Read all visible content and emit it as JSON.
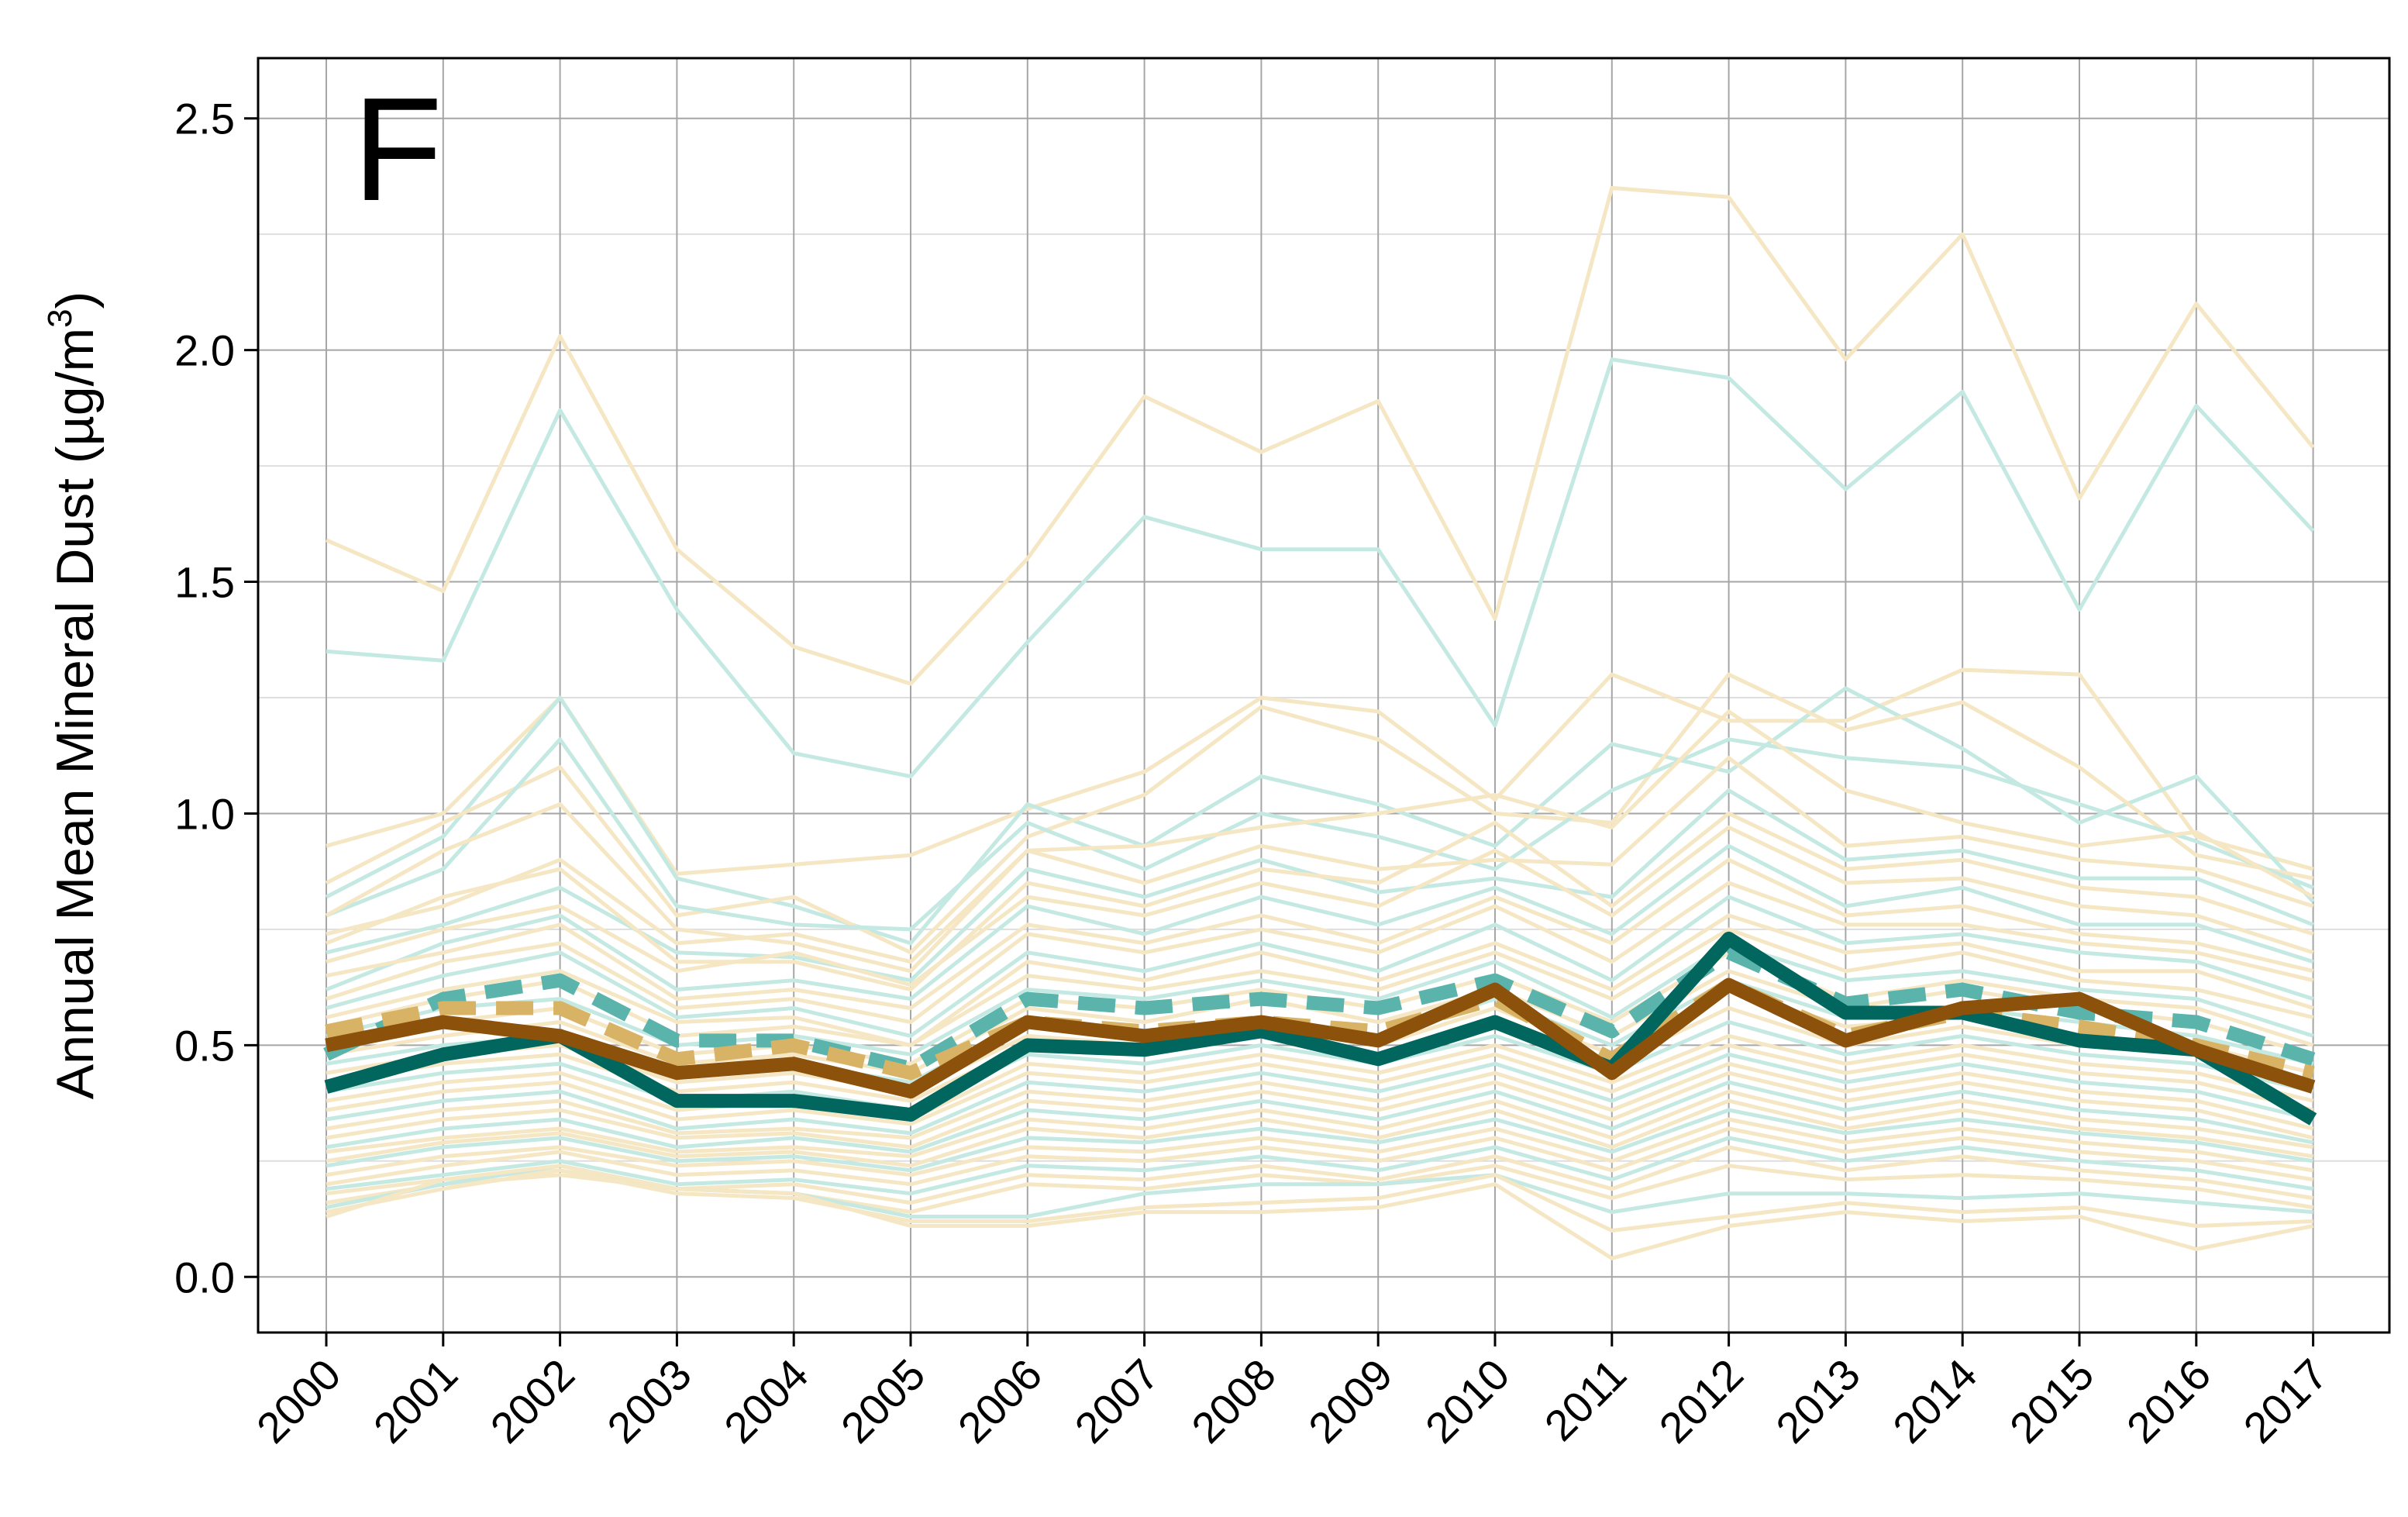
{
  "chart_data": {
    "type": "line",
    "panel_label": "F",
    "ylabel": "Annual Mean Mineral Dust (µg/m³)",
    "ylabel_main": "Annual Mean Mineral Dust (µg/m",
    "ylabel_sup": "3",
    "ylabel_close": ")",
    "xlabel": "",
    "x": [
      "2000",
      "2001",
      "2002",
      "2003",
      "2004",
      "2005",
      "2006",
      "2007",
      "2008",
      "2009",
      "2010",
      "2011",
      "2012",
      "2013",
      "2014",
      "2015",
      "2016",
      "2017"
    ],
    "ylim": [
      -0.12,
      2.63
    ],
    "yticks": [
      0.0,
      0.5,
      1.0,
      1.5,
      2.0,
      2.5
    ],
    "ytick_labels": [
      "0.0",
      "0.5",
      "1.0",
      "1.5",
      "2.0",
      "2.5"
    ],
    "grid": true,
    "colors": {
      "light_tan": "#f5e6c4",
      "light_teal": "#c4e9e2",
      "dark_teal": "#01665e",
      "mid_teal_dashed": "#5ab4ac",
      "brown": "#8c510a",
      "tan_dashed": "#d8b365"
    },
    "background_series": [
      {
        "style": "light_tan",
        "values": [
          1.59,
          1.48,
          2.03,
          1.57,
          1.36,
          1.28,
          1.55,
          1.9,
          1.78,
          1.89,
          1.42,
          2.35,
          2.33,
          1.98,
          2.25,
          1.68,
          2.1,
          1.79
        ]
      },
      {
        "style": "light_teal",
        "values": [
          1.35,
          1.33,
          1.87,
          1.44,
          1.13,
          1.08,
          1.37,
          1.64,
          1.57,
          1.57,
          1.19,
          1.98,
          1.94,
          1.7,
          1.91,
          1.44,
          1.88,
          1.61
        ]
      },
      {
        "style": "light_tan",
        "values": [
          0.93,
          1.0,
          1.25,
          0.87,
          0.89,
          0.91,
          1.01,
          1.09,
          1.25,
          1.22,
          1.03,
          1.3,
          1.2,
          1.2,
          1.31,
          1.3,
          0.95,
          0.88
        ]
      },
      {
        "style": "light_teal",
        "values": [
          0.82,
          0.95,
          1.25,
          0.86,
          0.8,
          0.72,
          1.02,
          0.93,
          1.08,
          1.02,
          0.93,
          1.15,
          1.09,
          1.27,
          1.14,
          0.98,
          1.08,
          0.81
        ]
      },
      {
        "style": "light_tan",
        "values": [
          0.85,
          0.98,
          1.1,
          0.78,
          0.82,
          0.7,
          0.95,
          1.04,
          1.23,
          1.16,
          1.0,
          0.98,
          1.3,
          1.18,
          1.24,
          1.1,
          0.91,
          0.86
        ]
      },
      {
        "style": "light_teal",
        "values": [
          0.78,
          0.88,
          1.16,
          0.8,
          0.76,
          0.75,
          0.98,
          0.88,
          1.0,
          0.95,
          0.88,
          1.05,
          1.16,
          1.12,
          1.1,
          1.02,
          0.94,
          0.84
        ]
      },
      {
        "style": "light_tan",
        "values": [
          0.78,
          0.92,
          1.02,
          0.75,
          0.72,
          0.66,
          0.92,
          0.93,
          0.97,
          1.0,
          1.04,
          0.97,
          1.22,
          1.05,
          0.98,
          0.93,
          0.96,
          0.82
        ]
      },
      {
        "style": "light_tan",
        "values": [
          0.74,
          0.8,
          0.9,
          0.72,
          0.74,
          0.68,
          0.92,
          0.85,
          0.93,
          0.88,
          0.9,
          0.89,
          1.12,
          0.93,
          0.95,
          0.9,
          0.88,
          0.8
        ]
      },
      {
        "style": "light_teal",
        "values": [
          0.7,
          0.76,
          0.84,
          0.7,
          0.69,
          0.64,
          0.88,
          0.82,
          0.9,
          0.83,
          0.86,
          0.82,
          1.05,
          0.9,
          0.92,
          0.86,
          0.86,
          0.76
        ]
      },
      {
        "style": "light_tan",
        "values": [
          0.72,
          0.82,
          0.88,
          0.68,
          0.68,
          0.62,
          0.85,
          0.8,
          0.88,
          0.85,
          0.98,
          0.8,
          1.0,
          0.88,
          0.9,
          0.84,
          0.82,
          0.74
        ]
      },
      {
        "style": "light_tan",
        "values": [
          0.68,
          0.75,
          0.8,
          0.66,
          0.7,
          0.63,
          0.82,
          0.78,
          0.85,
          0.8,
          0.92,
          0.78,
          0.97,
          0.85,
          0.86,
          0.8,
          0.78,
          0.7
        ]
      },
      {
        "style": "light_teal",
        "values": [
          0.62,
          0.72,
          0.78,
          0.62,
          0.64,
          0.6,
          0.8,
          0.74,
          0.82,
          0.76,
          0.84,
          0.74,
          0.93,
          0.8,
          0.84,
          0.76,
          0.76,
          0.68
        ]
      },
      {
        "style": "light_tan",
        "values": [
          0.65,
          0.7,
          0.76,
          0.6,
          0.62,
          0.58,
          0.76,
          0.72,
          0.78,
          0.72,
          0.82,
          0.72,
          0.9,
          0.78,
          0.8,
          0.74,
          0.72,
          0.66
        ]
      },
      {
        "style": "light_tan",
        "values": [
          0.6,
          0.68,
          0.72,
          0.58,
          0.6,
          0.55,
          0.74,
          0.7,
          0.75,
          0.7,
          0.8,
          0.68,
          0.85,
          0.76,
          0.76,
          0.72,
          0.7,
          0.64
        ]
      },
      {
        "style": "light_teal",
        "values": [
          0.58,
          0.65,
          0.7,
          0.56,
          0.58,
          0.52,
          0.7,
          0.66,
          0.72,
          0.66,
          0.76,
          0.64,
          0.82,
          0.72,
          0.74,
          0.7,
          0.68,
          0.6
        ]
      },
      {
        "style": "light_tan",
        "values": [
          0.56,
          0.62,
          0.66,
          0.55,
          0.56,
          0.5,
          0.68,
          0.64,
          0.7,
          0.64,
          0.72,
          0.62,
          0.78,
          0.7,
          0.72,
          0.66,
          0.66,
          0.58
        ]
      },
      {
        "style": "light_tan",
        "values": [
          0.54,
          0.6,
          0.64,
          0.52,
          0.54,
          0.5,
          0.65,
          0.62,
          0.66,
          0.62,
          0.7,
          0.6,
          0.75,
          0.66,
          0.7,
          0.64,
          0.62,
          0.56
        ]
      },
      {
        "style": "light_teal",
        "values": [
          0.52,
          0.58,
          0.6,
          0.5,
          0.52,
          0.48,
          0.62,
          0.6,
          0.64,
          0.6,
          0.68,
          0.56,
          0.72,
          0.64,
          0.66,
          0.62,
          0.6,
          0.52
        ]
      },
      {
        "style": "light_tan",
        "values": [
          0.5,
          0.55,
          0.58,
          0.48,
          0.5,
          0.46,
          0.6,
          0.58,
          0.62,
          0.58,
          0.65,
          0.55,
          0.7,
          0.6,
          0.64,
          0.6,
          0.58,
          0.5
        ]
      },
      {
        "style": "light_tan",
        "values": [
          0.48,
          0.52,
          0.55,
          0.46,
          0.48,
          0.44,
          0.58,
          0.55,
          0.6,
          0.55,
          0.62,
          0.52,
          0.66,
          0.58,
          0.62,
          0.58,
          0.55,
          0.48
        ]
      },
      {
        "style": "light_teal",
        "values": [
          0.46,
          0.5,
          0.52,
          0.44,
          0.46,
          0.42,
          0.55,
          0.52,
          0.56,
          0.52,
          0.6,
          0.5,
          0.64,
          0.56,
          0.58,
          0.55,
          0.52,
          0.46
        ]
      },
      {
        "style": "light_tan",
        "values": [
          0.44,
          0.48,
          0.5,
          0.42,
          0.44,
          0.4,
          0.52,
          0.5,
          0.54,
          0.5,
          0.58,
          0.48,
          0.62,
          0.54,
          0.56,
          0.52,
          0.5,
          0.44
        ]
      },
      {
        "style": "light_tan",
        "values": [
          0.42,
          0.46,
          0.48,
          0.4,
          0.42,
          0.38,
          0.5,
          0.48,
          0.52,
          0.48,
          0.55,
          0.46,
          0.58,
          0.5,
          0.54,
          0.5,
          0.48,
          0.42
        ]
      },
      {
        "style": "light_teal",
        "values": [
          0.4,
          0.44,
          0.46,
          0.38,
          0.4,
          0.36,
          0.48,
          0.46,
          0.5,
          0.46,
          0.52,
          0.44,
          0.55,
          0.48,
          0.52,
          0.48,
          0.46,
          0.4
        ]
      },
      {
        "style": "light_tan",
        "values": [
          0.38,
          0.42,
          0.44,
          0.36,
          0.38,
          0.34,
          0.46,
          0.44,
          0.48,
          0.44,
          0.5,
          0.42,
          0.52,
          0.46,
          0.5,
          0.46,
          0.44,
          0.38
        ]
      },
      {
        "style": "light_tan",
        "values": [
          0.36,
          0.4,
          0.42,
          0.34,
          0.36,
          0.33,
          0.44,
          0.42,
          0.46,
          0.42,
          0.48,
          0.4,
          0.5,
          0.44,
          0.48,
          0.44,
          0.42,
          0.36
        ]
      },
      {
        "style": "light_teal",
        "values": [
          0.34,
          0.38,
          0.4,
          0.32,
          0.34,
          0.31,
          0.42,
          0.4,
          0.44,
          0.4,
          0.46,
          0.38,
          0.48,
          0.42,
          0.46,
          0.42,
          0.4,
          0.34
        ]
      },
      {
        "style": "light_tan",
        "values": [
          0.32,
          0.36,
          0.38,
          0.31,
          0.32,
          0.3,
          0.4,
          0.38,
          0.42,
          0.38,
          0.44,
          0.36,
          0.46,
          0.4,
          0.44,
          0.4,
          0.38,
          0.32
        ]
      },
      {
        "style": "light_tan",
        "values": [
          0.3,
          0.34,
          0.36,
          0.3,
          0.31,
          0.28,
          0.38,
          0.36,
          0.4,
          0.36,
          0.42,
          0.34,
          0.44,
          0.38,
          0.42,
          0.38,
          0.36,
          0.3
        ]
      },
      {
        "style": "light_teal",
        "values": [
          0.28,
          0.32,
          0.34,
          0.28,
          0.3,
          0.27,
          0.36,
          0.34,
          0.38,
          0.34,
          0.4,
          0.32,
          0.42,
          0.36,
          0.4,
          0.36,
          0.34,
          0.29
        ]
      },
      {
        "style": "light_tan",
        "values": [
          0.27,
          0.3,
          0.32,
          0.27,
          0.28,
          0.26,
          0.34,
          0.32,
          0.36,
          0.32,
          0.38,
          0.3,
          0.4,
          0.34,
          0.38,
          0.34,
          0.32,
          0.28
        ]
      },
      {
        "style": "light_tan",
        "values": [
          0.25,
          0.29,
          0.31,
          0.26,
          0.27,
          0.24,
          0.32,
          0.3,
          0.34,
          0.3,
          0.36,
          0.28,
          0.38,
          0.32,
          0.36,
          0.32,
          0.3,
          0.26
        ]
      },
      {
        "style": "light_teal",
        "values": [
          0.24,
          0.28,
          0.3,
          0.25,
          0.26,
          0.23,
          0.3,
          0.29,
          0.32,
          0.29,
          0.34,
          0.27,
          0.36,
          0.31,
          0.34,
          0.31,
          0.29,
          0.25
        ]
      },
      {
        "style": "light_tan",
        "values": [
          0.22,
          0.26,
          0.28,
          0.24,
          0.25,
          0.22,
          0.28,
          0.27,
          0.3,
          0.27,
          0.32,
          0.25,
          0.34,
          0.29,
          0.32,
          0.29,
          0.27,
          0.23
        ]
      },
      {
        "style": "light_tan",
        "values": [
          0.2,
          0.24,
          0.27,
          0.22,
          0.23,
          0.2,
          0.26,
          0.25,
          0.28,
          0.25,
          0.3,
          0.23,
          0.32,
          0.27,
          0.3,
          0.27,
          0.25,
          0.21
        ]
      },
      {
        "style": "light_teal",
        "values": [
          0.19,
          0.22,
          0.25,
          0.2,
          0.21,
          0.18,
          0.24,
          0.23,
          0.26,
          0.23,
          0.28,
          0.21,
          0.3,
          0.25,
          0.28,
          0.25,
          0.23,
          0.19
        ]
      },
      {
        "style": "light_tan",
        "values": [
          0.18,
          0.21,
          0.23,
          0.19,
          0.2,
          0.16,
          0.22,
          0.21,
          0.24,
          0.21,
          0.26,
          0.19,
          0.28,
          0.23,
          0.26,
          0.23,
          0.21,
          0.17
        ]
      },
      {
        "style": "light_tan",
        "values": [
          0.16,
          0.2,
          0.22,
          0.19,
          0.18,
          0.14,
          0.2,
          0.19,
          0.22,
          0.2,
          0.24,
          0.17,
          0.24,
          0.21,
          0.22,
          0.21,
          0.19,
          0.15
        ]
      },
      {
        "style": "light_teal",
        "values": [
          0.15,
          0.2,
          0.24,
          0.19,
          0.18,
          0.13,
          0.13,
          0.18,
          0.2,
          0.2,
          0.22,
          0.14,
          0.18,
          0.18,
          0.17,
          0.18,
          0.16,
          0.14
        ]
      },
      {
        "style": "light_tan",
        "values": [
          0.13,
          0.21,
          0.24,
          0.19,
          0.18,
          0.11,
          0.11,
          0.14,
          0.14,
          0.15,
          0.2,
          0.04,
          0.11,
          0.14,
          0.12,
          0.13,
          0.06,
          0.11
        ]
      },
      {
        "style": "light_tan",
        "values": [
          0.14,
          0.19,
          0.23,
          0.18,
          0.17,
          0.12,
          0.12,
          0.15,
          0.16,
          0.17,
          0.22,
          0.1,
          0.13,
          0.16,
          0.14,
          0.15,
          0.11,
          0.12
        ]
      }
    ],
    "series": [
      {
        "style": "mid_teal_dashed",
        "values": [
          0.48,
          0.6,
          0.64,
          0.51,
          0.51,
          0.45,
          0.6,
          0.58,
          0.6,
          0.58,
          0.64,
          0.53,
          0.7,
          0.59,
          0.62,
          0.57,
          0.55,
          0.47
        ]
      },
      {
        "style": "tan_dashed",
        "values": [
          0.53,
          0.58,
          0.58,
          0.47,
          0.5,
          0.44,
          0.55,
          0.53,
          0.55,
          0.53,
          0.6,
          0.47,
          0.63,
          0.52,
          0.57,
          0.54,
          0.5,
          0.44
        ]
      },
      {
        "style": "dark_teal",
        "values": [
          0.41,
          0.48,
          0.52,
          0.38,
          0.38,
          0.35,
          0.5,
          0.49,
          0.53,
          0.47,
          0.55,
          0.45,
          0.73,
          0.57,
          0.57,
          0.51,
          0.49,
          0.34
        ]
      },
      {
        "style": "brown",
        "values": [
          0.5,
          0.55,
          0.52,
          0.44,
          0.46,
          0.4,
          0.55,
          0.52,
          0.55,
          0.51,
          0.62,
          0.44,
          0.63,
          0.51,
          0.58,
          0.6,
          0.49,
          0.41
        ]
      }
    ]
  }
}
